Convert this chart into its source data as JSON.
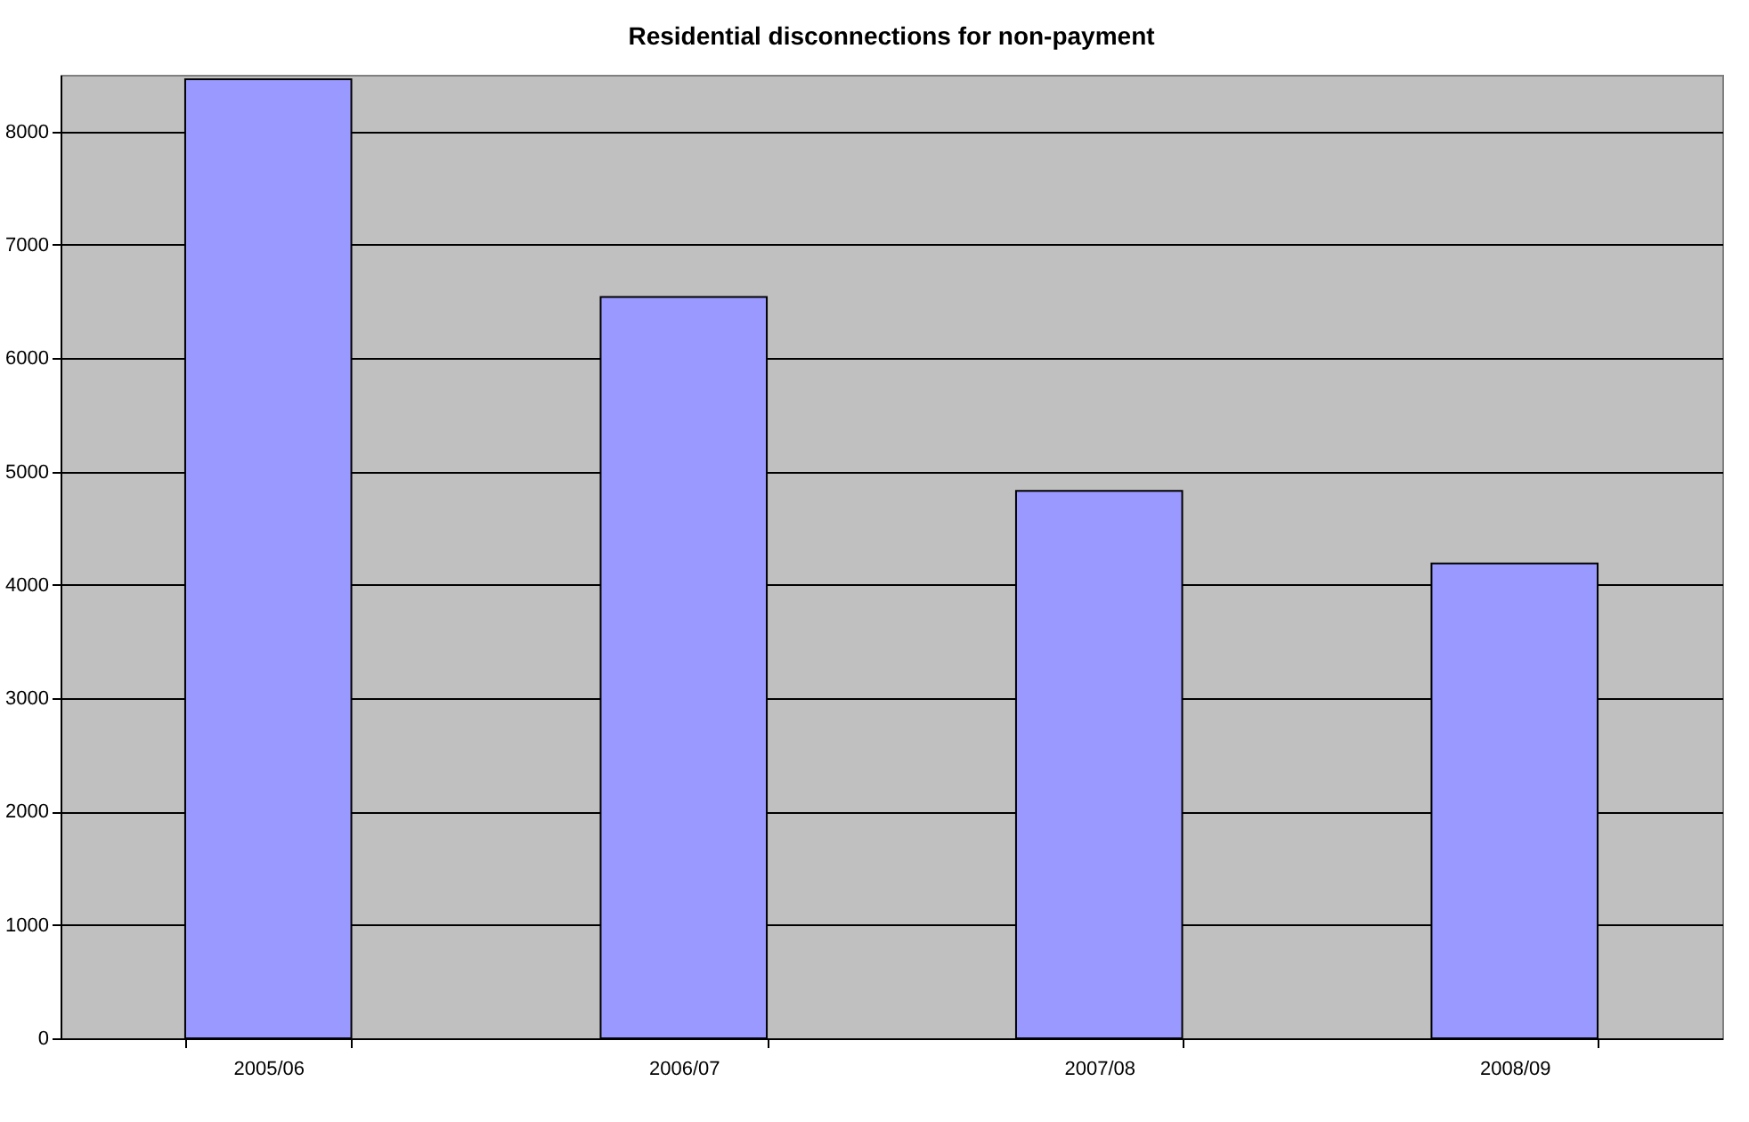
{
  "chart_data": {
    "type": "bar",
    "title": "Residential disconnections for non-payment",
    "categories": [
      "2005/06",
      "2006/07",
      "2007/08",
      "2008/09"
    ],
    "values": [
      8460,
      6540,
      4830,
      4190
    ],
    "color": "#9999ff",
    "ylim": [
      0,
      8500
    ],
    "yticks": [
      0,
      1000,
      2000,
      3000,
      4000,
      5000,
      6000,
      7000,
      8000
    ],
    "grid": "y"
  }
}
